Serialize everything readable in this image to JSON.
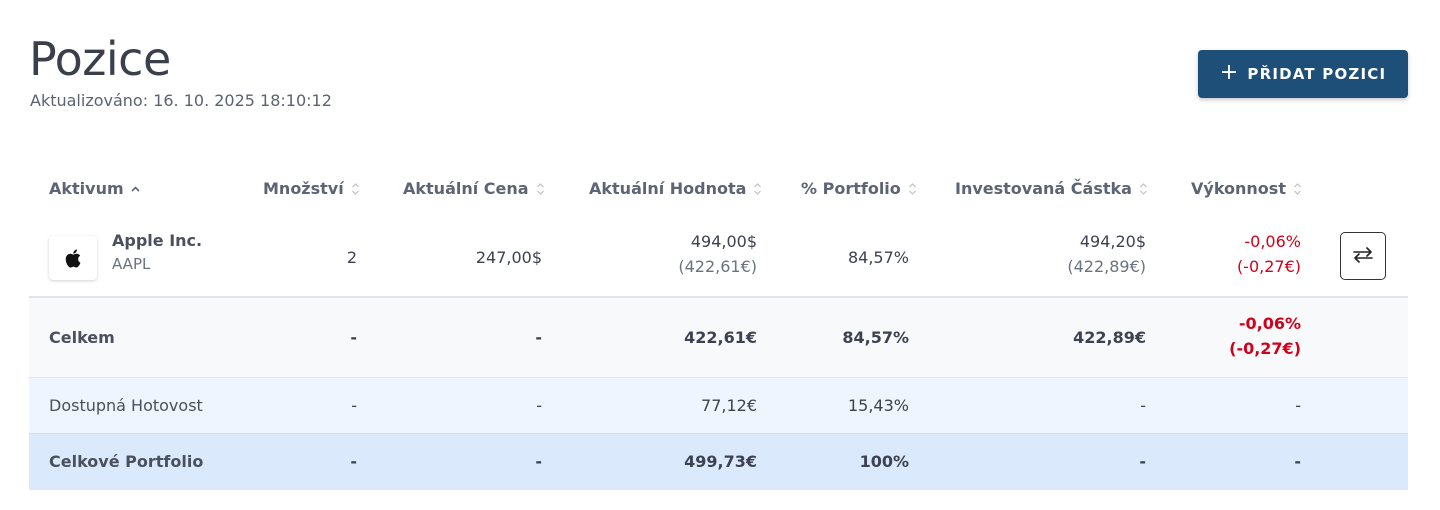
{
  "header": {
    "title": "Pozice",
    "updated": "Aktualizováno: 16. 10. 2025 18:10:12",
    "add_button_label": "PŘIDAT POZICI",
    "add_button_icon": "plus-icon"
  },
  "table": {
    "columns": [
      {
        "label": "Aktivum",
        "sort": "ascending"
      },
      {
        "label": "Množství",
        "sort": "none"
      },
      {
        "label": "Aktuální Cena",
        "sort": "none"
      },
      {
        "label": "Aktuální Hodnota",
        "sort": "none"
      },
      {
        "label": "% Portfolio",
        "sort": "none"
      },
      {
        "label": "Investovaná Částka",
        "sort": "none"
      },
      {
        "label": "Výkonnost",
        "sort": "none"
      }
    ],
    "positions": [
      {
        "name": "Apple Inc.",
        "ticker": "AAPL",
        "logo_icon": "apple-logo-icon",
        "quantity": "2",
        "price": "247,00$",
        "value": "494,00$",
        "value_eur": "(422,61€)",
        "portfolio_pct": "84,57%",
        "invested": "494,20$",
        "invested_eur": "(422,89€)",
        "performance_pct": "-0,06%",
        "performance_eur": "(-0,27€)",
        "action_icon": "transfer-arrows-icon"
      }
    ],
    "total": {
      "label": "Celkem",
      "quantity": "-",
      "price": "-",
      "value": "422,61€",
      "portfolio_pct": "84,57%",
      "invested": "422,89€",
      "performance_pct": "-0,06%",
      "performance_eur": "(-0,27€)"
    },
    "cash": {
      "label": "Dostupná Hotovost",
      "quantity": "-",
      "price": "-",
      "value": "77,12€",
      "portfolio_pct": "15,43%",
      "invested": "-",
      "performance": "-"
    },
    "portfolio": {
      "label": "Celkové Portfolio",
      "quantity": "-",
      "price": "-",
      "value": "499,73€",
      "portfolio_pct": "100%",
      "invested": "-",
      "performance": "-"
    }
  },
  "colors": {
    "accent": "#1d4f78",
    "negative": "#d0021b",
    "total_row_bg": "#f8f9fb",
    "cash_row_bg": "#eef5fe",
    "portfolio_row_bg": "#dbe9fc"
  }
}
